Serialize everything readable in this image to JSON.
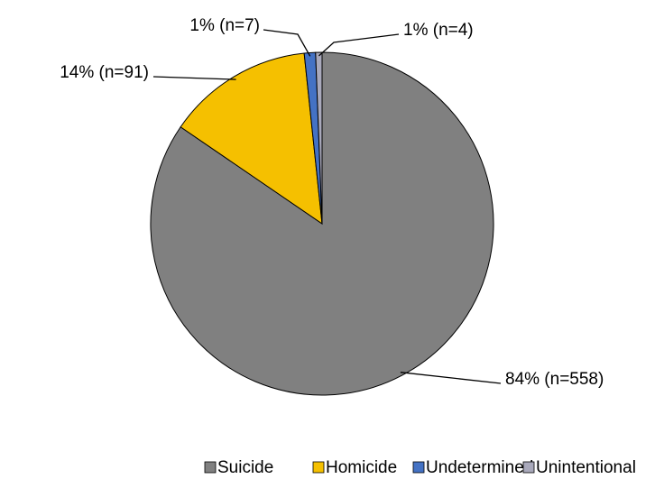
{
  "chart_data": {
    "type": "pie",
    "categories": [
      "Suicide",
      "Homicide",
      "Undetermined",
      "Unintentional"
    ],
    "values": [
      558,
      91,
      7,
      4
    ],
    "value_labels": [
      "84% (n=558)",
      "14% (n=91)",
      "1% (n=7)",
      "1% (n=4)"
    ],
    "colors": [
      "#808080",
      "#f5c000",
      "#4472c4",
      "#a9a9bb"
    ],
    "legend": "bottom"
  }
}
